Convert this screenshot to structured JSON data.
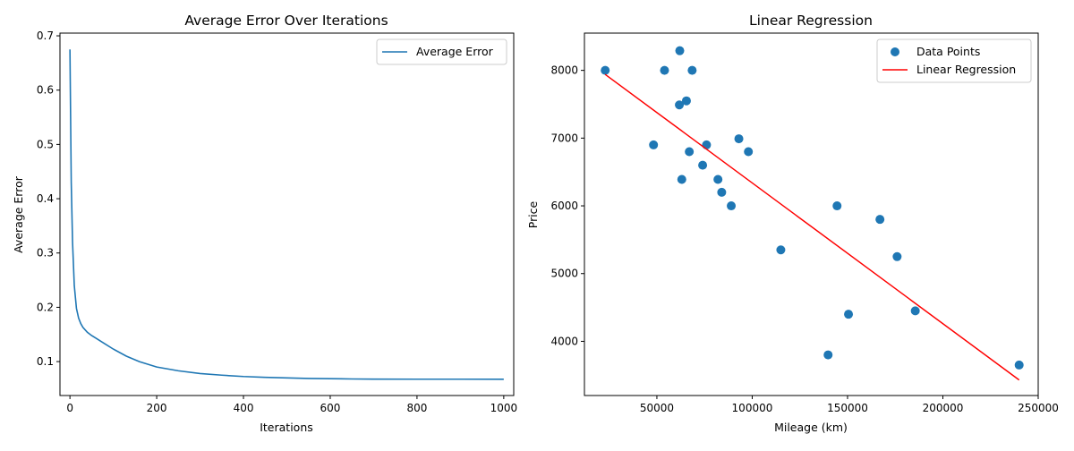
{
  "chart_data": [
    {
      "type": "line",
      "title": "Average Error Over Iterations",
      "xlabel": "Iterations",
      "ylabel": "Average Error",
      "xlim": [
        -23,
        1023
      ],
      "ylim": [
        0.0375,
        0.705
      ],
      "xticks": [
        0,
        200,
        400,
        600,
        800,
        1000
      ],
      "yticks": [
        0.1,
        0.2,
        0.3,
        0.4,
        0.5,
        0.6,
        0.7
      ],
      "grid": false,
      "legend_position": "top-right",
      "series": [
        {
          "name": "Average Error",
          "color": "#1f77b4",
          "x": [
            0,
            3,
            6,
            10,
            15,
            20,
            25,
            30,
            40,
            50,
            60,
            80,
            100,
            130,
            160,
            200,
            250,
            300,
            350,
            400,
            450,
            500,
            550,
            600,
            650,
            700,
            800,
            900,
            1000
          ],
          "y": [
            0.675,
            0.43,
            0.32,
            0.24,
            0.198,
            0.18,
            0.17,
            0.163,
            0.154,
            0.148,
            0.143,
            0.133,
            0.123,
            0.11,
            0.1,
            0.09,
            0.083,
            0.078,
            0.075,
            0.0725,
            0.071,
            0.07,
            0.069,
            0.0685,
            0.068,
            0.0677,
            0.0676,
            0.0676,
            0.0675
          ]
        }
      ]
    },
    {
      "type": "scatter",
      "title": "Linear Regression",
      "xlabel": "Mileage (km)",
      "ylabel": "Price",
      "xlim": [
        12000,
        250000
      ],
      "ylim": [
        3200,
        8550
      ],
      "xticks": [
        50000,
        100000,
        150000,
        200000,
        250000
      ],
      "yticks": [
        4000,
        5000,
        6000,
        7000,
        8000
      ],
      "grid": false,
      "legend_position": "top-right",
      "series": [
        {
          "name": "Data Points",
          "kind": "scatter",
          "color": "#1f77b4",
          "x": [
            22899,
            48235,
            54000,
            61789,
            62000,
            63060,
            65500,
            67000,
            68500,
            74000,
            76025,
            82029,
            84000,
            89000,
            93000,
            98000,
            115000,
            139800,
            144500,
            150500,
            167000,
            176000,
            185530,
            240000
          ],
          "y": [
            8000,
            6900,
            8000,
            7490,
            8290,
            6390,
            7550,
            6800,
            8000,
            6600,
            6900,
            6390,
            6200,
            6000,
            6990,
            6800,
            5350,
            3800,
            6000,
            4400,
            5800,
            5250,
            4450,
            3650
          ]
        },
        {
          "name": "Linear Regression",
          "kind": "line",
          "color": "#ff0000",
          "x": [
            22899,
            240000
          ],
          "y": [
            7940,
            3430
          ]
        }
      ]
    }
  ]
}
